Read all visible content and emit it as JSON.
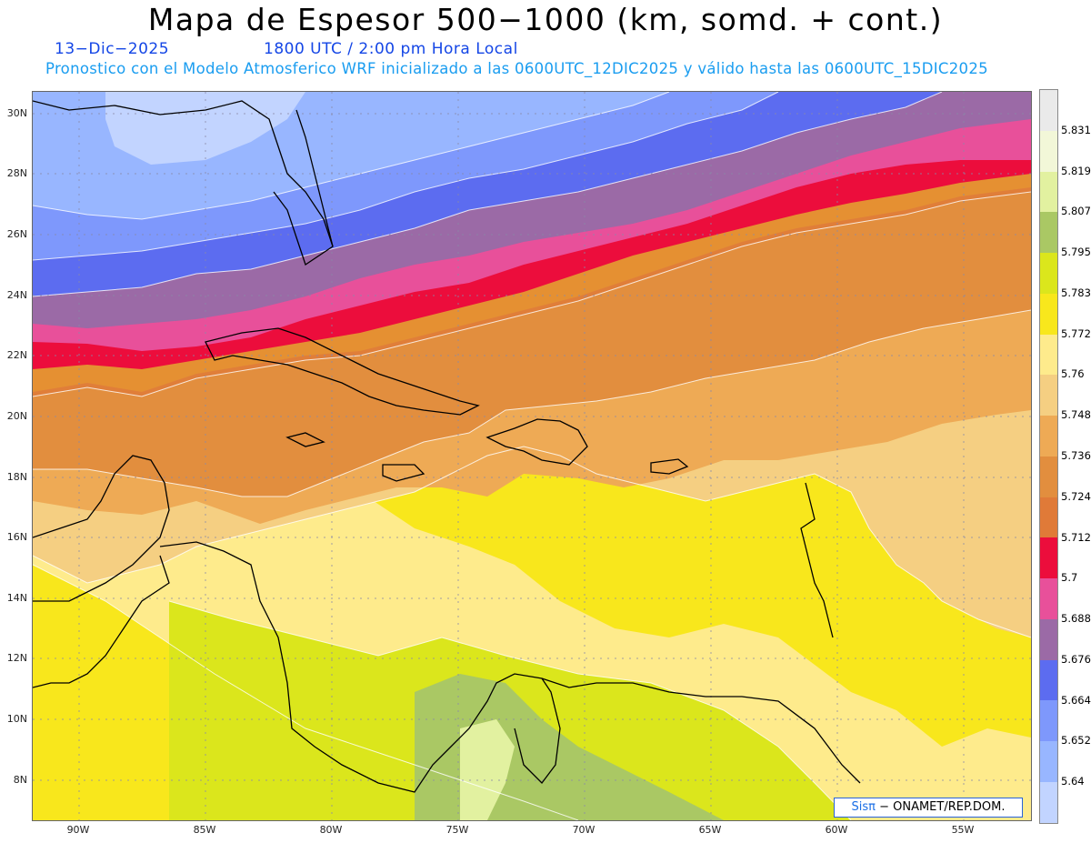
{
  "title": "Mapa de Espesor 500−1000 (km, somd. + cont.)",
  "date": "13−Dic−2025",
  "time": "1800 UTC / 2:00 pm Hora Local",
  "forecast_line": "Pronostico con el Modelo Atmosferico WRF inicializado a las 0600UTC_12DIC2025 y válido hasta las  0600UTC_15DIC2025",
  "lat_labels": [
    "30N",
    "28N",
    "26N",
    "24N",
    "22N",
    "20N",
    "18N",
    "16N",
    "14N",
    "12N",
    "10N",
    "8N"
  ],
  "lon_labels": [
    "90W",
    "85W",
    "80W",
    "75W",
    "70W",
    "65W",
    "60W",
    "55W"
  ],
  "colorbar": {
    "labels": [
      "5.831",
      "5.819",
      "5.807",
      "5.795",
      "5.783",
      "5.772",
      "5.76",
      "5.748",
      "5.736",
      "5.724",
      "5.712",
      "5.7",
      "5.688",
      "5.676",
      "5.664",
      "5.652",
      "5.64"
    ],
    "colors": [
      "#eaeaea",
      "#f2f7d8",
      "#e2f1a0",
      "#aac864",
      "#dbe61c",
      "#f8e71c",
      "#feeb8c",
      "#f5cf82",
      "#eeaa55",
      "#e28e3e",
      "#e07a38",
      "#ec0d3c",
      "#e8509a",
      "#9b6aa6",
      "#5c6cf0",
      "#7e98fc",
      "#98b6ff",
      "#c2d4ff"
    ]
  },
  "credit": {
    "brand": "Sisπ",
    "text": "− ONAMET/REP.DOM."
  }
}
